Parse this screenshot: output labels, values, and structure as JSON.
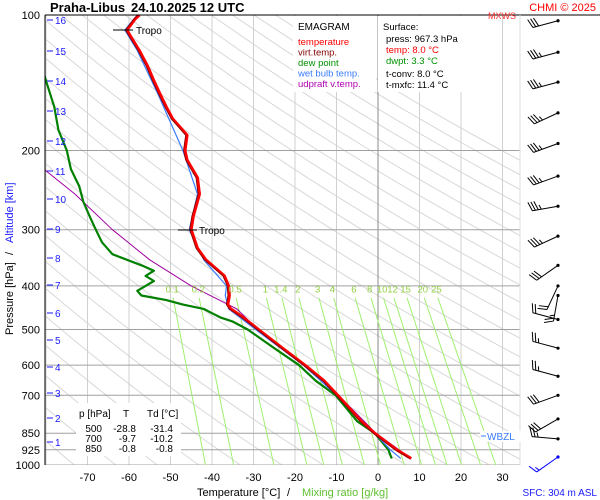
{
  "chart_data": {
    "type": "line",
    "title": "Praha-Libus",
    "datetime": "24.10.2025 12 UTC",
    "diagram_name": "EMAGRAM",
    "copyright": "CHMI © 2025",
    "ylabel_pressure": "Pressure [hPa]",
    "ylabel_separator": "/",
    "ylabel_altitude": "Altitude [km]",
    "xlabel_temperature": "Temperature [°C]",
    "xlabel_separator": "/",
    "xlabel_mixing": "Mixing ratio [g/kg]",
    "xlim": [
      -80,
      30
    ],
    "ylim": [
      1000,
      100
    ],
    "y_scale": "log",
    "x_ticks": [
      -70,
      -60,
      -50,
      -40,
      -30,
      -20,
      -10,
      0,
      10,
      20,
      30
    ],
    "y_ticks": [
      100,
      200,
      300,
      400,
      500,
      600,
      700,
      850,
      925,
      1000
    ],
    "altitude_ticks_km": [
      1,
      2,
      3,
      4,
      5,
      6,
      7,
      8,
      9,
      10,
      11,
      12,
      13,
      14,
      15,
      16
    ],
    "mixing_ratio_lines": [
      "0.1",
      "0.2",
      "0.5",
      "1",
      "1.4",
      "2",
      "3",
      "4",
      "6",
      "8",
      "10",
      "12",
      "15",
      "20",
      "25"
    ],
    "colors": {
      "temperature": "#ff0000",
      "virt_temp": "#800000",
      "dew_point": "#008000",
      "wet_bulb": "#3a7bff",
      "updraft": "#a000a0",
      "mixing": "#90ee60",
      "altitude": "#0000ff"
    },
    "legend": [
      {
        "label": "temperature",
        "color": "#ff0000"
      },
      {
        "label": "virt.temp.",
        "color": "#800000"
      },
      {
        "label": "dew point",
        "color": "#009000"
      },
      {
        "label": "wet bulb temp.",
        "color": "#3a7bff"
      },
      {
        "label": "udpraft v.temp.",
        "color": "#b000b0"
      }
    ],
    "series": [
      {
        "name": "temperature",
        "points": [
          [
            967.3,
            8.0
          ],
          [
            925,
            4.5
          ],
          [
            850,
            -0.8
          ],
          [
            800,
            -4
          ],
          [
            700,
            -9.7
          ],
          [
            650,
            -13
          ],
          [
            600,
            -17.6
          ],
          [
            550,
            -23
          ],
          [
            500,
            -28.8
          ],
          [
            470,
            -32.5
          ],
          [
            450,
            -35.5
          ],
          [
            440,
            -36.2
          ],
          [
            420,
            -35.8
          ],
          [
            400,
            -36
          ],
          [
            380,
            -37
          ],
          [
            350,
            -41.5
          ],
          [
            330,
            -43.5
          ],
          [
            300,
            -45
          ],
          [
            280,
            -44.5
          ],
          [
            250,
            -43
          ],
          [
            230,
            -43.5
          ],
          [
            210,
            -46
          ],
          [
            200,
            -46.5
          ],
          [
            185,
            -46
          ],
          [
            170,
            -49.5
          ],
          [
            160,
            -51
          ],
          [
            150,
            -52.5
          ],
          [
            140,
            -54
          ],
          [
            130,
            -55.5
          ],
          [
            120,
            -57.5
          ],
          [
            112,
            -59.5
          ],
          [
            108,
            -60.5
          ],
          [
            105,
            -59.5
          ],
          [
            102,
            -58.5
          ],
          [
            100,
            -57.5
          ]
        ]
      },
      {
        "name": "dew point",
        "points": [
          [
            967.3,
            3.3
          ],
          [
            925,
            2.5
          ],
          [
            850,
            -0.8
          ],
          [
            800,
            -5
          ],
          [
            700,
            -10.2
          ],
          [
            650,
            -15
          ],
          [
            600,
            -19
          ],
          [
            550,
            -25
          ],
          [
            500,
            -31.4
          ],
          [
            480,
            -35
          ],
          [
            470,
            -38
          ],
          [
            460,
            -40
          ],
          [
            450,
            -42
          ],
          [
            440,
            -47
          ],
          [
            430,
            -51
          ],
          [
            420,
            -57
          ],
          [
            410,
            -58
          ],
          [
            400,
            -56
          ],
          [
            390,
            -54
          ],
          [
            380,
            -56
          ],
          [
            370,
            -54
          ],
          [
            360,
            -57
          ],
          [
            340,
            -64
          ],
          [
            320,
            -66.5
          ],
          [
            300,
            -68
          ],
          [
            280,
            -69.5
          ],
          [
            260,
            -71
          ],
          [
            240,
            -72
          ],
          [
            220,
            -74
          ],
          [
            200,
            -75
          ],
          [
            180,
            -77
          ],
          [
            160,
            -78
          ],
          [
            140,
            -80
          ],
          [
            130,
            -81
          ]
        ]
      },
      {
        "name": "wet bulb temp.",
        "points": [
          [
            967.3,
            5.5
          ],
          [
            925,
            3
          ],
          [
            850,
            -0.8
          ],
          [
            700,
            -9.9
          ],
          [
            600,
            -18
          ],
          [
            500,
            -29.5
          ],
          [
            450,
            -36
          ],
          [
            420,
            -36.8
          ],
          [
            400,
            -36.5
          ],
          [
            350,
            -42
          ],
          [
            300,
            -45.5
          ],
          [
            250,
            -43.5
          ],
          [
            200,
            -47
          ],
          [
            150,
            -53
          ],
          [
            120,
            -58
          ],
          [
            108,
            -61
          ],
          [
            100,
            -58
          ]
        ]
      },
      {
        "name": "udpraft v.temp.",
        "points": [
          [
            967.3,
            8.0
          ],
          [
            850,
            -0.5
          ],
          [
            700,
            -9.5
          ],
          [
            600,
            -17.5
          ],
          [
            500,
            -29
          ],
          [
            450,
            -34
          ],
          [
            400,
            -45
          ],
          [
            350,
            -55
          ],
          [
            300,
            -64
          ],
          [
            250,
            -73
          ],
          [
            220,
            -80.5
          ]
        ]
      }
    ],
    "tropopause_label": "Tropo",
    "tropopause_levels_hpa": [
      108,
      300
    ],
    "wbzl_label": "WBZL",
    "wbzl_hpa": 850,
    "mxws_label": "MXWS",
    "surface_label": "SFC: 304 m ASL",
    "winds": [
      {
        "p": 103,
        "dir": 255,
        "kt": 30,
        "color": "#000000"
      },
      {
        "p": 121,
        "dir": 255,
        "kt": 35
      },
      {
        "p": 141,
        "dir": 255,
        "kt": 35
      },
      {
        "p": 165,
        "dir": 245,
        "kt": 35
      },
      {
        "p": 193,
        "dir": 250,
        "kt": 35
      },
      {
        "p": 228,
        "dir": 250,
        "kt": 35
      },
      {
        "p": 266,
        "dir": 260,
        "kt": 35
      },
      {
        "p": 310,
        "dir": 245,
        "kt": 35
      },
      {
        "p": 360,
        "dir": 235,
        "kt": 30
      },
      {
        "p": 400,
        "dir": 205,
        "kt": 20
      },
      {
        "p": 420,
        "dir": 190,
        "kt": 25
      },
      {
        "p": 475,
        "dir": 285,
        "kt": 20
      },
      {
        "p": 550,
        "dir": 285,
        "kt": 25
      },
      {
        "p": 635,
        "dir": 285,
        "kt": 25
      },
      {
        "p": 700,
        "dir": 250,
        "kt": 30
      },
      {
        "p": 790,
        "dir": 240,
        "kt": 30
      },
      {
        "p": 875,
        "dir": 275,
        "kt": 25
      },
      {
        "p": 967.3,
        "dir": 235,
        "kt": 15,
        "color": "#0000ff"
      }
    ]
  },
  "surface": {
    "heading": "Surface:",
    "press": "press: 967.3 hPa",
    "temp": "temp: 8.0 °C",
    "dwpt": "dwpt: 3.3 °C",
    "tconv": "t-conv: 8.0 °C",
    "tmxfc": "t-mxfc: 11.4 °C"
  },
  "table": {
    "headers": [
      "p [hPa]",
      "T",
      "Td [°C]"
    ],
    "rows": [
      [
        "500",
        "-28.8",
        "-31.4"
      ],
      [
        "700",
        "-9.7",
        "-10.2"
      ],
      [
        "850",
        "-0.8",
        "-0.8"
      ]
    ]
  }
}
